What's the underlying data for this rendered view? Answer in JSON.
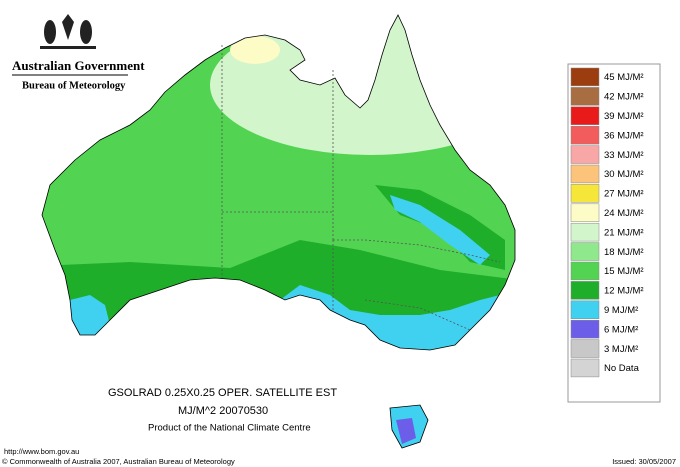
{
  "header": {
    "government": "Australian Government",
    "bureau": "Bureau of Meteorology"
  },
  "caption": {
    "line1": "GSOLRAD    0.25X0.25 OPER. SATELLITE EST",
    "line2": "MJ/M^2  20070530",
    "line3": "Product of the National Climate Centre"
  },
  "legend": [
    {
      "label": "45 MJ/M²",
      "color": "#9c3d10"
    },
    {
      "label": "42 MJ/M²",
      "color": "#a86d40"
    },
    {
      "label": "39 MJ/M²",
      "color": "#e81a1a"
    },
    {
      "label": "36 MJ/M²",
      "color": "#f25c5c"
    },
    {
      "label": "33 MJ/M²",
      "color": "#f8a6a6"
    },
    {
      "label": "30 MJ/M²",
      "color": "#fbc47a"
    },
    {
      "label": "27 MJ/M²",
      "color": "#f6e63a"
    },
    {
      "label": "24 MJ/M²",
      "color": "#fdfbc6"
    },
    {
      "label": "21 MJ/M²",
      "color": "#d2f5cc"
    },
    {
      "label": "18 MJ/M²",
      "color": "#8fe88c"
    },
    {
      "label": "15 MJ/M²",
      "color": "#52d452"
    },
    {
      "label": "12 MJ/M²",
      "color": "#1fae2a"
    },
    {
      "label": "9 MJ/M²",
      "color": "#40d0f0"
    },
    {
      "label": "6 MJ/M²",
      "color": "#6c5ee8"
    },
    {
      "label": "3 MJ/M²",
      "color": "#c8c8c8"
    },
    {
      "label": "No Data",
      "color": "#d4d4d4"
    }
  ],
  "footer": {
    "url": "http://www.bom.gov.au",
    "copyright": "© Commonwealth of Australia 2007, Australian Bureau of Meteorology",
    "issued": "Issued: 30/05/2007"
  }
}
